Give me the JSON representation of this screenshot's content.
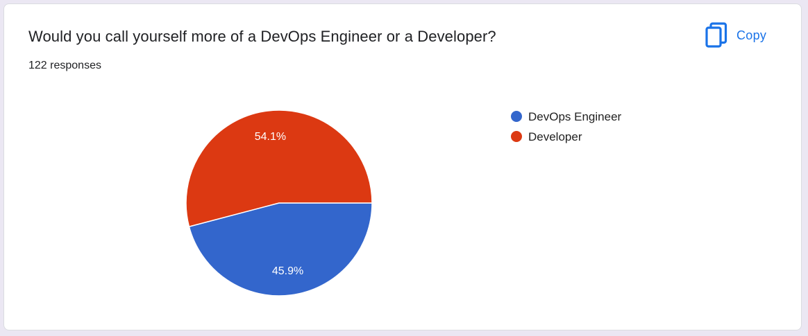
{
  "card": {
    "title": "Would you call yourself more of a DevOps Engineer or a Developer?",
    "responses_text": "122 responses",
    "copy_label": "Copy",
    "copy_icon": "copy-icon",
    "accent_color": "#1a73e8"
  },
  "chart_data": {
    "type": "pie",
    "title": "",
    "categories": [
      "DevOps Engineer",
      "Developer"
    ],
    "values": [
      45.9,
      54.1
    ],
    "labels": [
      "45.9%",
      "54.1%"
    ],
    "colors": [
      "#3366cc",
      "#dc3912"
    ],
    "start_angle_deg": 90,
    "direction": "clockwise",
    "legend_position": "right"
  }
}
